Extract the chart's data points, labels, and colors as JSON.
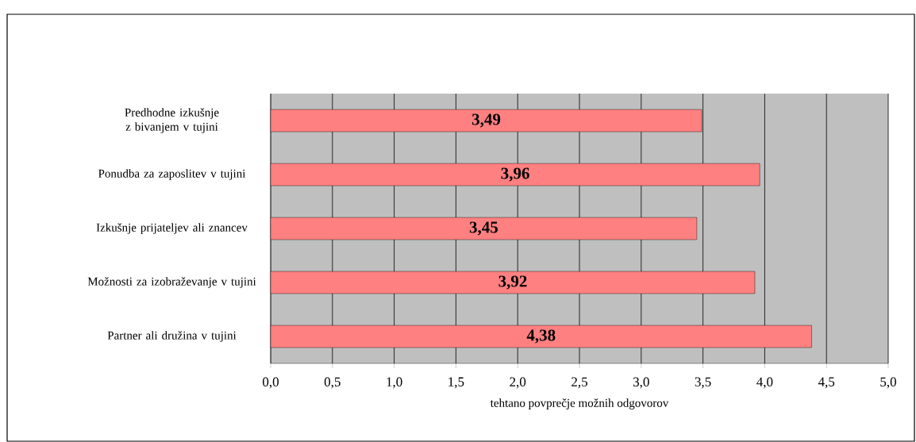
{
  "chart_data": {
    "type": "bar",
    "orientation": "horizontal",
    "xlabel": "tehtano povprečje možnih odgovorov",
    "categories": [
      "Predhodne izkušnje z bivanjem v tujini",
      "Ponudba za zaposlitev v tujini",
      "Izkušnje prijateljev ali znancev",
      "Možnosti za izobraževanje v tujini",
      "Partner ali družina v tujini"
    ],
    "values": [
      3.49,
      3.96,
      3.45,
      3.92,
      4.38
    ],
    "value_labels": [
      "3,49",
      "3,96",
      "3,45",
      "3,92",
      "4,38"
    ],
    "color": "#ff8080",
    "xlim": [
      0,
      5
    ],
    "xticks": [
      {
        "value": 0,
        "label": "0,0"
      },
      {
        "value": 0.5,
        "label": "0,5"
      },
      {
        "value": 1,
        "label": "1,0"
      },
      {
        "value": 1.5,
        "label": "1,5"
      },
      {
        "value": 2,
        "label": "2,0"
      },
      {
        "value": 2.5,
        "label": "2,5"
      },
      {
        "value": 3,
        "label": "3,0"
      },
      {
        "value": 3.5,
        "label": "3,5"
      },
      {
        "value": 4,
        "label": "4,0"
      },
      {
        "value": 4.5,
        "label": "4,5"
      },
      {
        "value": 5,
        "label": "5,0"
      }
    ],
    "grid": "x"
  }
}
